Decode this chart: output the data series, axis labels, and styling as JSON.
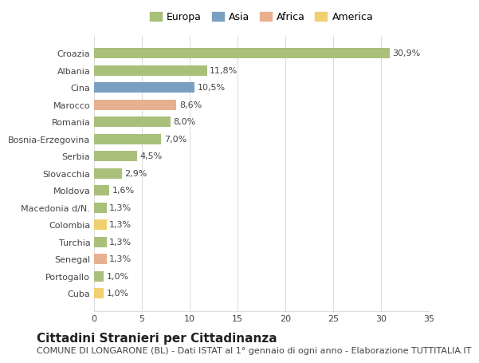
{
  "categories": [
    "Cuba",
    "Portogallo",
    "Senegal",
    "Turchia",
    "Colombia",
    "Macedonia d/N.",
    "Moldova",
    "Slovacchia",
    "Serbia",
    "Bosnia-Erzegovina",
    "Romania",
    "Marocco",
    "Cina",
    "Albania",
    "Croazia"
  ],
  "values": [
    1.0,
    1.0,
    1.3,
    1.3,
    1.3,
    1.3,
    1.6,
    2.9,
    4.5,
    7.0,
    8.0,
    8.6,
    10.5,
    11.8,
    30.9
  ],
  "labels": [
    "1,0%",
    "1,0%",
    "1,3%",
    "1,3%",
    "1,3%",
    "1,3%",
    "1,6%",
    "2,9%",
    "4,5%",
    "7,0%",
    "8,0%",
    "8,6%",
    "10,5%",
    "11,8%",
    "30,9%"
  ],
  "continent": [
    "America",
    "Europa",
    "Africa",
    "Europa",
    "America",
    "Europa",
    "Europa",
    "Europa",
    "Europa",
    "Europa",
    "Europa",
    "Africa",
    "Asia",
    "Europa",
    "Europa"
  ],
  "colors": {
    "Europa": "#a8c07a",
    "Asia": "#7a9fc0",
    "Africa": "#e8b090",
    "America": "#f0d070"
  },
  "legend_order": [
    "Europa",
    "Asia",
    "Africa",
    "America"
  ],
  "title": "Cittadini Stranieri per Cittadinanza",
  "subtitle": "COMUNE DI LONGARONE (BL) - Dati ISTAT al 1° gennaio di ogni anno - Elaborazione TUTTITALIA.IT",
  "xlim": [
    0,
    35
  ],
  "xticks": [
    0,
    5,
    10,
    15,
    20,
    25,
    30,
    35
  ],
  "background_color": "#ffffff",
  "grid_color": "#dddddd",
  "bar_height": 0.6,
  "title_fontsize": 11,
  "subtitle_fontsize": 8,
  "label_fontsize": 8,
  "tick_fontsize": 8,
  "legend_fontsize": 9
}
